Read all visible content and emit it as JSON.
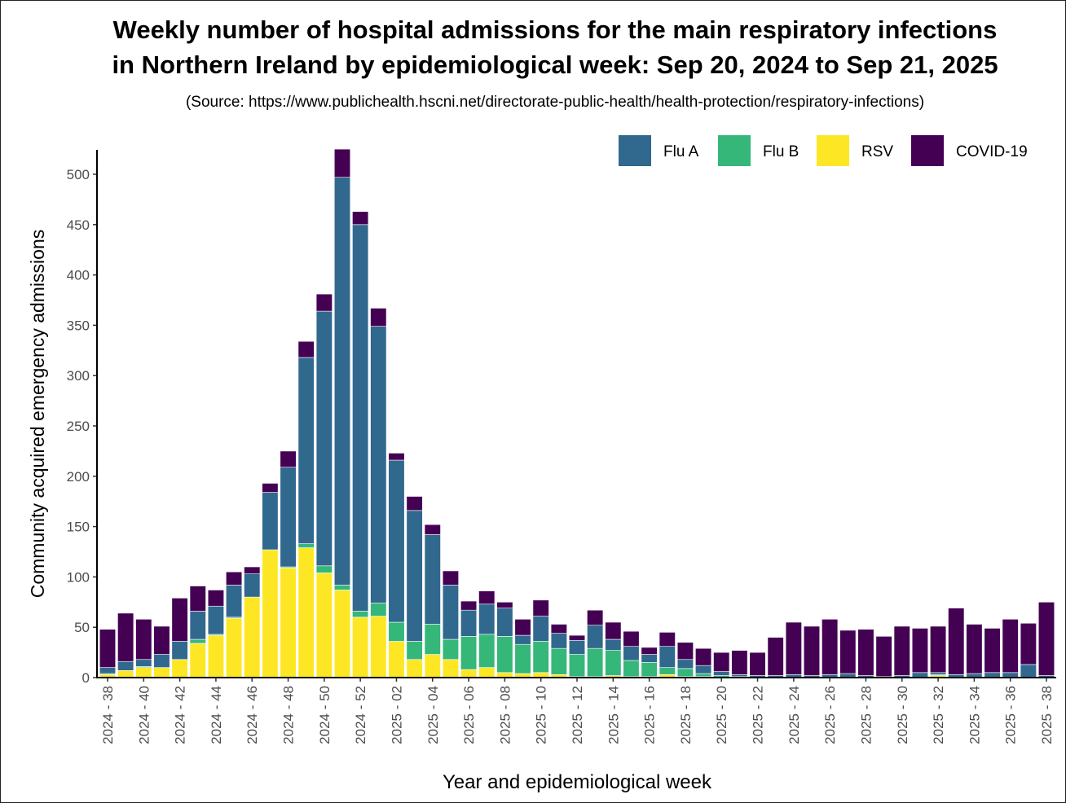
{
  "chart_data": {
    "type": "bar",
    "stacked": true,
    "title_lines": [
      "Weekly number of hospital admissions for the main respiratory infections",
      "in Northern Ireland by epidemiological week: Sep 20, 2024 to Sep 21, 2025"
    ],
    "subtitle": "(Source: https://www.publichealth.hscni.net/directorate-public-health/health-protection/respiratory-infections)",
    "xlabel": "Year and epidemiological week",
    "ylabel": "Community acquired emergency admissions",
    "ylim": [
      0,
      525
    ],
    "yticks": [
      0,
      50,
      100,
      150,
      200,
      250,
      300,
      350,
      400,
      450,
      500
    ],
    "legend_position": "top-right",
    "categories": [
      "2024 - 38",
      "2024 - 39",
      "2024 - 40",
      "2024 - 41",
      "2024 - 42",
      "2024 - 43",
      "2024 - 44",
      "2024 - 45",
      "2024 - 46",
      "2024 - 47",
      "2024 - 48",
      "2024 - 49",
      "2024 - 50",
      "2024 - 51",
      "2024 - 52",
      "2025 - 01",
      "2025 - 02",
      "2025 - 03",
      "2025 - 04",
      "2025 - 05",
      "2025 - 06",
      "2025 - 07",
      "2025 - 08",
      "2025 - 09",
      "2025 - 10",
      "2025 - 11",
      "2025 - 12",
      "2025 - 13",
      "2025 - 14",
      "2025 - 15",
      "2025 - 16",
      "2025 - 17",
      "2025 - 18",
      "2025 - 19",
      "2025 - 20",
      "2025 - 21",
      "2025 - 22",
      "2025 - 23",
      "2025 - 24",
      "2025 - 25",
      "2025 - 26",
      "2025 - 27",
      "2025 - 28",
      "2025 - 29",
      "2025 - 30",
      "2025 - 31",
      "2025 - 32",
      "2025 - 33",
      "2025 - 34",
      "2025 - 35",
      "2025 - 36",
      "2025 - 37",
      "2025 - 38"
    ],
    "tick_labels_shown": [
      "2024 - 38",
      "2024 - 40",
      "2024 - 42",
      "2024 - 44",
      "2024 - 46",
      "2024 - 48",
      "2024 - 50",
      "2024 - 52",
      "2025 - 02",
      "2025 - 04",
      "2025 - 06",
      "2025 - 08",
      "2025 - 10",
      "2025 - 12",
      "2025 - 14",
      "2025 - 16",
      "2025 - 18",
      "2025 - 20",
      "2025 - 22",
      "2025 - 24",
      "2025 - 26",
      "2025 - 28",
      "2025 - 30",
      "2025 - 32",
      "2025 - 34",
      "2025 - 36",
      "2025 - 38"
    ],
    "series": [
      {
        "name": "RSV",
        "color": "#fde725",
        "values": [
          3,
          7,
          10,
          10,
          18,
          34,
          42,
          59,
          80,
          127,
          109,
          129,
          104,
          87,
          60,
          61,
          36,
          18,
          23,
          18,
          8,
          10,
          5,
          4,
          5,
          3,
          1,
          1,
          2,
          1,
          1,
          3,
          1,
          1,
          0,
          0,
          0,
          0,
          0,
          0,
          0,
          0,
          0,
          0,
          0,
          0,
          2,
          0,
          0,
          0,
          0,
          0,
          0
        ]
      },
      {
        "name": "Flu B",
        "color": "#35b779",
        "values": [
          1,
          0,
          1,
          0,
          0,
          4,
          1,
          1,
          0,
          0,
          1,
          4,
          7,
          5,
          6,
          13,
          19,
          18,
          30,
          20,
          33,
          33,
          36,
          29,
          31,
          26,
          22,
          28,
          25,
          16,
          14,
          7,
          8,
          3,
          2,
          1,
          0,
          0,
          0,
          0,
          0,
          0,
          0,
          0,
          0,
          0,
          1,
          0,
          0,
          0,
          0,
          0,
          0
        ]
      },
      {
        "name": "Flu A",
        "color": "#31688e",
        "values": [
          6,
          9,
          7,
          13,
          18,
          28,
          28,
          32,
          23,
          57,
          99,
          185,
          253,
          405,
          384,
          275,
          161,
          130,
          89,
          54,
          26,
          30,
          28,
          9,
          25,
          15,
          14,
          23,
          11,
          14,
          8,
          21,
          9,
          8,
          4,
          2,
          2,
          2,
          3,
          2,
          3,
          4,
          2,
          1,
          2,
          5,
          2,
          3,
          4,
          5,
          5,
          13,
          2
        ]
      },
      {
        "name": "COVID-19",
        "color": "#440154",
        "values": [
          38,
          48,
          40,
          28,
          43,
          25,
          16,
          13,
          7,
          9,
          16,
          16,
          17,
          28,
          13,
          18,
          7,
          14,
          10,
          14,
          9,
          13,
          6,
          16,
          16,
          9,
          5,
          15,
          17,
          15,
          7,
          14,
          17,
          17,
          19,
          24,
          23,
          38,
          52,
          49,
          55,
          43,
          46,
          40,
          49,
          44,
          46,
          66,
          49,
          44,
          53,
          41,
          73
        ]
      }
    ]
  }
}
